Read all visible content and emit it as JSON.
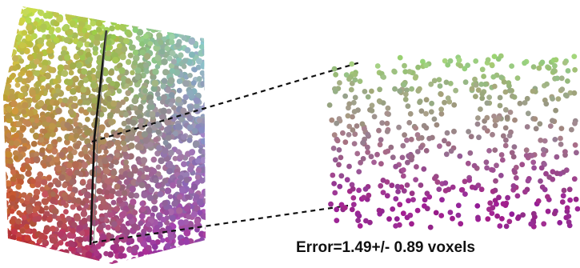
{
  "caption": "Error=1.49+/- 0.89 voxels",
  "colors": {
    "top_green": "#8fd15a",
    "yellow_green": "#c9d64a",
    "cyan": "#8fd3e0",
    "red": "#c0272d",
    "purple": "#8e3aa6",
    "magenta": "#b02aa0",
    "sample_top": "#9dd27a",
    "sample_middle": "#a0828a",
    "sample_bottom": "#9a2590",
    "connector": "#111111"
  }
}
